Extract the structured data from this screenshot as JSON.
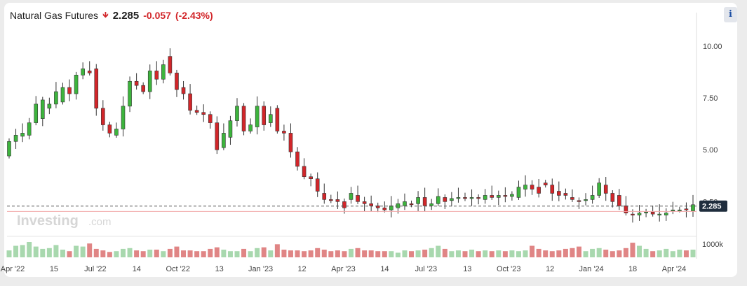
{
  "header": {
    "title": "Natural Gas Futures",
    "price": "2.285",
    "change": "-0.057",
    "change_pct": "(-2.43%)",
    "direction_icon": "down-arrow-icon"
  },
  "info_button": {
    "label": "i",
    "icon": "info-icon"
  },
  "watermark": {
    "brand": "Investing",
    "suffix": ".com"
  },
  "colors": {
    "up": "#3db43d",
    "down": "#d2262a",
    "vol_up": "#a8d8ae",
    "vol_down": "#e08585"
  },
  "chart_data": {
    "type": "candlestick",
    "interval": "weekly",
    "ylim": [
      1.5,
      10.6
    ],
    "y_ticks": [
      "10.00",
      "7.50",
      "5.00",
      "2.50"
    ],
    "last_price": "2.285",
    "volume_label": "1000k",
    "x_ticks": [
      "Apr '22",
      "15",
      "Jul '22",
      "14",
      "Oct '22",
      "13",
      "Jan '23",
      "12",
      "Apr '23",
      "14",
      "Jul '23",
      "13",
      "Oct '23",
      "12",
      "Jan '24",
      "18",
      "Apr '24"
    ],
    "candles": [
      [
        4.7,
        5.4
      ],
      [
        5.4,
        5.7
      ],
      [
        5.65,
        5.8
      ],
      [
        5.7,
        6.3
      ],
      [
        6.3,
        7.2
      ],
      [
        6.5,
        7.4
      ],
      [
        7.0,
        7.2
      ],
      [
        7.2,
        7.8
      ],
      [
        7.3,
        8.0
      ],
      [
        8.0,
        7.7
      ],
      [
        7.7,
        8.6
      ],
      [
        8.6,
        8.9
      ],
      [
        8.8,
        8.7
      ],
      [
        8.9,
        7.0
      ],
      [
        7.0,
        6.2
      ],
      [
        6.2,
        5.8
      ],
      [
        5.7,
        6.0
      ],
      [
        6.0,
        7.1
      ],
      [
        7.1,
        8.3
      ],
      [
        8.3,
        8.1
      ],
      [
        8.1,
        7.8
      ],
      [
        7.8,
        8.8
      ],
      [
        8.8,
        8.4
      ],
      [
        8.4,
        9.1
      ],
      [
        9.5,
        8.7
      ],
      [
        8.7,
        7.9
      ],
      [
        8.0,
        7.7
      ],
      [
        7.7,
        6.9
      ],
      [
        6.9,
        6.8
      ],
      [
        6.8,
        6.7
      ],
      [
        6.7,
        6.3
      ],
      [
        6.3,
        5.0
      ],
      [
        5.1,
        5.8
      ],
      [
        5.6,
        6.4
      ],
      [
        6.4,
        7.1
      ],
      [
        7.1,
        5.9
      ],
      [
        5.9,
        6.2
      ],
      [
        6.1,
        7.1
      ],
      [
        7.1,
        6.2
      ],
      [
        6.3,
        6.7
      ],
      [
        7.0,
        5.9
      ],
      [
        5.9,
        5.8
      ],
      [
        5.8,
        4.9
      ],
      [
        4.9,
        4.2
      ],
      [
        4.2,
        3.7
      ],
      [
        3.7,
        3.6
      ],
      [
        3.6,
        3.0
      ],
      [
        2.9,
        2.6
      ],
      [
        2.6,
        2.55
      ],
      [
        2.6,
        2.5
      ],
      [
        2.5,
        2.2
      ],
      [
        2.6,
        2.9
      ],
      [
        2.8,
        2.5
      ],
      [
        2.5,
        2.4
      ],
      [
        2.4,
        2.3
      ],
      [
        2.3,
        2.2
      ],
      [
        2.2,
        2.1
      ],
      [
        2.1,
        2.3
      ],
      [
        2.2,
        2.4
      ],
      [
        2.3,
        2.5
      ],
      [
        2.4,
        2.35
      ],
      [
        2.4,
        2.7
      ],
      [
        2.7,
        2.3
      ],
      [
        2.3,
        2.4
      ],
      [
        2.4,
        2.75
      ],
      [
        2.7,
        2.5
      ],
      [
        2.55,
        2.65
      ],
      [
        2.65,
        2.7
      ],
      [
        2.7,
        2.65
      ],
      [
        2.65,
        2.7
      ],
      [
        2.7,
        2.65
      ],
      [
        2.6,
        2.8
      ],
      [
        2.8,
        2.7
      ],
      [
        2.7,
        2.8
      ],
      [
        2.8,
        2.75
      ],
      [
        2.75,
        2.85
      ],
      [
        2.7,
        3.2
      ],
      [
        3.1,
        3.3
      ],
      [
        3.3,
        3.1
      ],
      [
        3.2,
        2.9
      ],
      [
        3.4,
        3.3
      ],
      [
        3.3,
        2.9
      ],
      [
        3.0,
        2.8
      ],
      [
        2.9,
        2.8
      ],
      [
        2.7,
        2.6
      ],
      [
        2.55,
        2.5
      ],
      [
        2.6,
        2.6
      ],
      [
        2.6,
        2.8
      ],
      [
        2.8,
        3.4
      ],
      [
        3.3,
        2.9
      ],
      [
        2.9,
        2.5
      ],
      [
        2.8,
        2.3
      ],
      [
        2.3,
        1.95
      ],
      [
        1.9,
        1.85
      ],
      [
        1.85,
        1.95
      ],
      [
        1.95,
        2.0
      ],
      [
        2.0,
        1.9
      ],
      [
        1.9,
        1.9
      ],
      [
        1.85,
        1.95
      ],
      [
        2.1,
        2.1
      ],
      [
        2.1,
        2.1
      ],
      [
        2.15,
        2.1
      ],
      [
        2.05,
        2.35
      ]
    ],
    "volume_pct": [
      45,
      75,
      80,
      100,
      70,
      55,
      60,
      80,
      50,
      40,
      75,
      70,
      90,
      55,
      45,
      35,
      40,
      55,
      60,
      45,
      40,
      50,
      50,
      40,
      55,
      70,
      45,
      45,
      40,
      40,
      55,
      65,
      50,
      40,
      40,
      55,
      40,
      60,
      65,
      45,
      85,
      50,
      45,
      45,
      40,
      45,
      60,
      50,
      40,
      45,
      40,
      55,
      60,
      45,
      45,
      40,
      40,
      40,
      30,
      45,
      40,
      45,
      50,
      60,
      75,
      55,
      40,
      45,
      40,
      50,
      40,
      45,
      40,
      45,
      40,
      45,
      40,
      45,
      75,
      55,
      45,
      40,
      45,
      55,
      60,
      70,
      40,
      55,
      60,
      50,
      40,
      45,
      60,
      95,
      75,
      55,
      40,
      45,
      55,
      40,
      50,
      45,
      50
    ]
  }
}
